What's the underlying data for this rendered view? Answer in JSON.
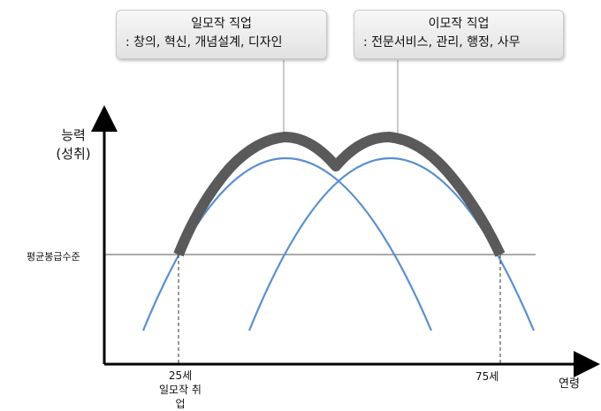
{
  "callouts": {
    "first_job": {
      "title": "일모작 직업",
      "desc": ": 창의, 혁신, 개념설계, 디자인"
    },
    "second_job": {
      "title": "이모작 직업",
      "desc": ": 전문서비스, 관리, 행정, 사무"
    }
  },
  "axes": {
    "y_label_line1": "능력",
    "y_label_line2": "(성취)",
    "x_label": "연령",
    "avg_line_label": "평균봉급수준"
  },
  "ticks": {
    "age_25": "25세",
    "age_25_note": "일모작 취업",
    "age_75": "75세"
  },
  "colors": {
    "curve": "#5b8fd0",
    "highlight": "#5a5a5a",
    "axis": "#000000",
    "avg_line": "#555555"
  }
}
